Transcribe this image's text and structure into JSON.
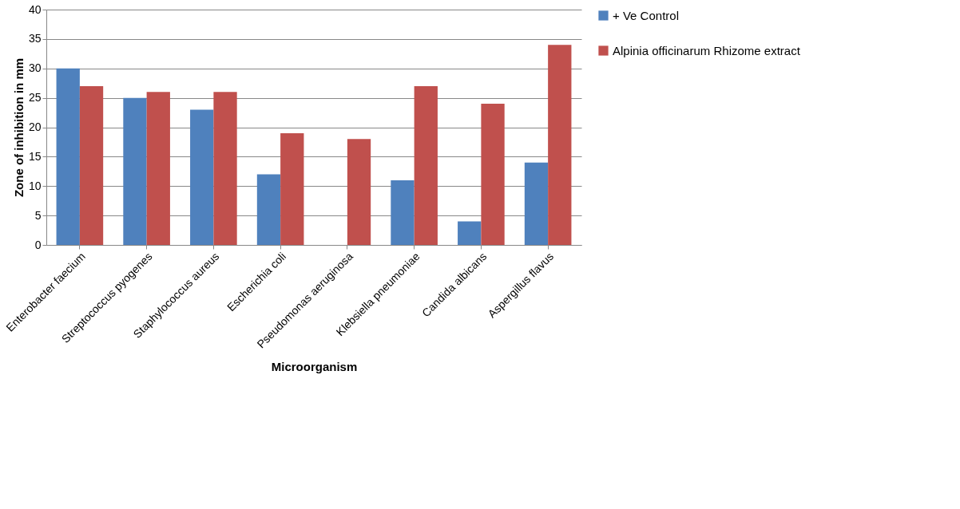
{
  "chart_data": {
    "type": "bar",
    "xlabel": "Microorganism",
    "ylabel": "Zone of inhibition in mm",
    "categories": [
      "Enterobacter faecium",
      "Streptococcus pyogenes",
      "Staphylococcus aureus",
      "Escherichia coli",
      "Pseudomonas aeruginosa",
      "Klebsiella pneumoniae",
      "Candida albicans",
      "Aspergillus flavus"
    ],
    "series": [
      {
        "name": "+ Ve Control",
        "color": "#4f81bd",
        "values": [
          30,
          25,
          23,
          12,
          0,
          11,
          4,
          14
        ]
      },
      {
        "name": "Alpinia officinarum Rhizome extract",
        "color": "#c0504d",
        "values": [
          27,
          26,
          26,
          19,
          18,
          27,
          24,
          34
        ]
      }
    ],
    "ylim": [
      0,
      40
    ],
    "yticks": [
      0,
      5,
      10,
      15,
      20,
      25,
      30,
      35,
      40
    ],
    "grid": "y",
    "legend": "right"
  }
}
